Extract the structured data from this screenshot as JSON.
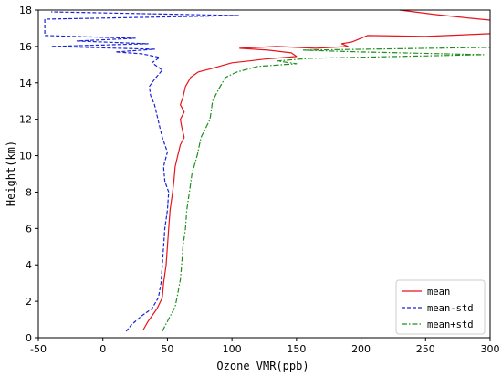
{
  "chart_data": {
    "type": "line",
    "title": "",
    "xlabel": "Ozone  VMR(ppb)",
    "ylabel": "Height(km)",
    "xlim": [
      -50,
      300
    ],
    "ylim": [
      0,
      18
    ],
    "x_ticks": [
      -50,
      0,
      50,
      100,
      150,
      200,
      250,
      300
    ],
    "y_ticks": [
      0,
      2,
      4,
      6,
      8,
      10,
      12,
      14,
      16,
      18
    ],
    "grid": false,
    "legend_position": "lower-right",
    "series": [
      {
        "name": "mean",
        "color": "#e8141a",
        "dash": "solid",
        "points": [
          [
            31,
            0.4
          ],
          [
            35,
            0.9
          ],
          [
            42,
            1.6
          ],
          [
            46,
            2.2
          ],
          [
            47,
            3
          ],
          [
            49,
            4
          ],
          [
            50,
            5
          ],
          [
            51,
            6
          ],
          [
            52,
            7
          ],
          [
            54,
            8
          ],
          [
            55,
            8.6
          ],
          [
            56,
            9.4
          ],
          [
            58,
            10
          ],
          [
            60,
            10.6
          ],
          [
            63,
            11
          ],
          [
            61,
            11.6
          ],
          [
            60,
            12
          ],
          [
            63,
            12.4
          ],
          [
            60,
            12.8
          ],
          [
            62,
            13.2
          ],
          [
            64,
            13.8
          ],
          [
            68,
            14.3
          ],
          [
            74,
            14.6
          ],
          [
            85,
            14.8
          ],
          [
            100,
            15.1
          ],
          [
            113,
            15.2
          ],
          [
            125,
            15.3
          ],
          [
            150,
            15.45
          ],
          [
            146,
            15.65
          ],
          [
            128,
            15.8
          ],
          [
            106,
            15.9
          ],
          [
            135,
            16
          ],
          [
            165,
            15.9
          ],
          [
            190,
            16
          ],
          [
            185,
            16.15
          ],
          [
            193,
            16.25
          ],
          [
            205,
            16.6
          ],
          [
            250,
            16.55
          ],
          [
            300,
            16.7
          ]
        ]
      },
      {
        "name": "",
        "color": "#e8141a",
        "dash": "solid",
        "points": [
          [
            230,
            18
          ],
          [
            258,
            17.75
          ],
          [
            285,
            17.55
          ],
          [
            300,
            17.45
          ]
        ]
      },
      {
        "name": "mean-std",
        "color": "#1a23d6",
        "dash": "dashed",
        "points": [
          [
            18,
            0.35
          ],
          [
            22,
            0.7
          ],
          [
            30,
            1.2
          ],
          [
            38,
            1.6
          ],
          [
            43,
            2.2
          ],
          [
            45,
            3
          ],
          [
            46,
            4
          ],
          [
            47,
            5
          ],
          [
            48,
            6
          ],
          [
            50,
            7
          ],
          [
            51,
            8
          ],
          [
            48,
            8.6
          ],
          [
            47,
            9.4
          ],
          [
            50,
            10.2
          ],
          [
            46,
            11
          ],
          [
            44,
            11.6
          ],
          [
            42,
            12.2
          ],
          [
            40,
            12.8
          ],
          [
            37,
            13.3
          ],
          [
            36,
            13.8
          ],
          [
            40,
            14.2
          ],
          [
            46,
            14.7
          ],
          [
            38,
            15.1
          ],
          [
            44,
            15.4
          ],
          [
            30,
            15.6
          ],
          [
            10,
            15.7
          ],
          [
            40,
            15.85
          ],
          [
            -40,
            16
          ],
          [
            35,
            16.15
          ],
          [
            -20,
            16.3
          ],
          [
            25,
            16.45
          ],
          [
            -45,
            16.6
          ],
          [
            -45,
            17.5
          ],
          [
            105,
            17.7
          ],
          [
            -40,
            17.9
          ]
        ]
      },
      {
        "name": "mean+std",
        "color": "#1e8f1e",
        "dash": "dashdot",
        "points": [
          [
            46,
            0.35
          ],
          [
            50,
            0.9
          ],
          [
            56,
            1.7
          ],
          [
            58,
            2.4
          ],
          [
            60,
            3.2
          ],
          [
            61,
            4
          ],
          [
            62,
            5
          ],
          [
            64,
            6
          ],
          [
            65,
            7
          ],
          [
            67,
            8
          ],
          [
            69,
            9
          ],
          [
            73,
            10
          ],
          [
            76,
            11
          ],
          [
            83,
            12
          ],
          [
            85,
            13
          ],
          [
            90,
            13.7
          ],
          [
            95,
            14.3
          ],
          [
            104,
            14.6
          ],
          [
            120,
            14.9
          ],
          [
            150,
            15.05
          ],
          [
            135,
            15.2
          ],
          [
            160,
            15.35
          ],
          [
            295,
            15.55
          ],
          [
            200,
            15.7
          ],
          [
            155,
            15.8
          ],
          [
            300,
            15.95
          ]
        ]
      }
    ]
  }
}
